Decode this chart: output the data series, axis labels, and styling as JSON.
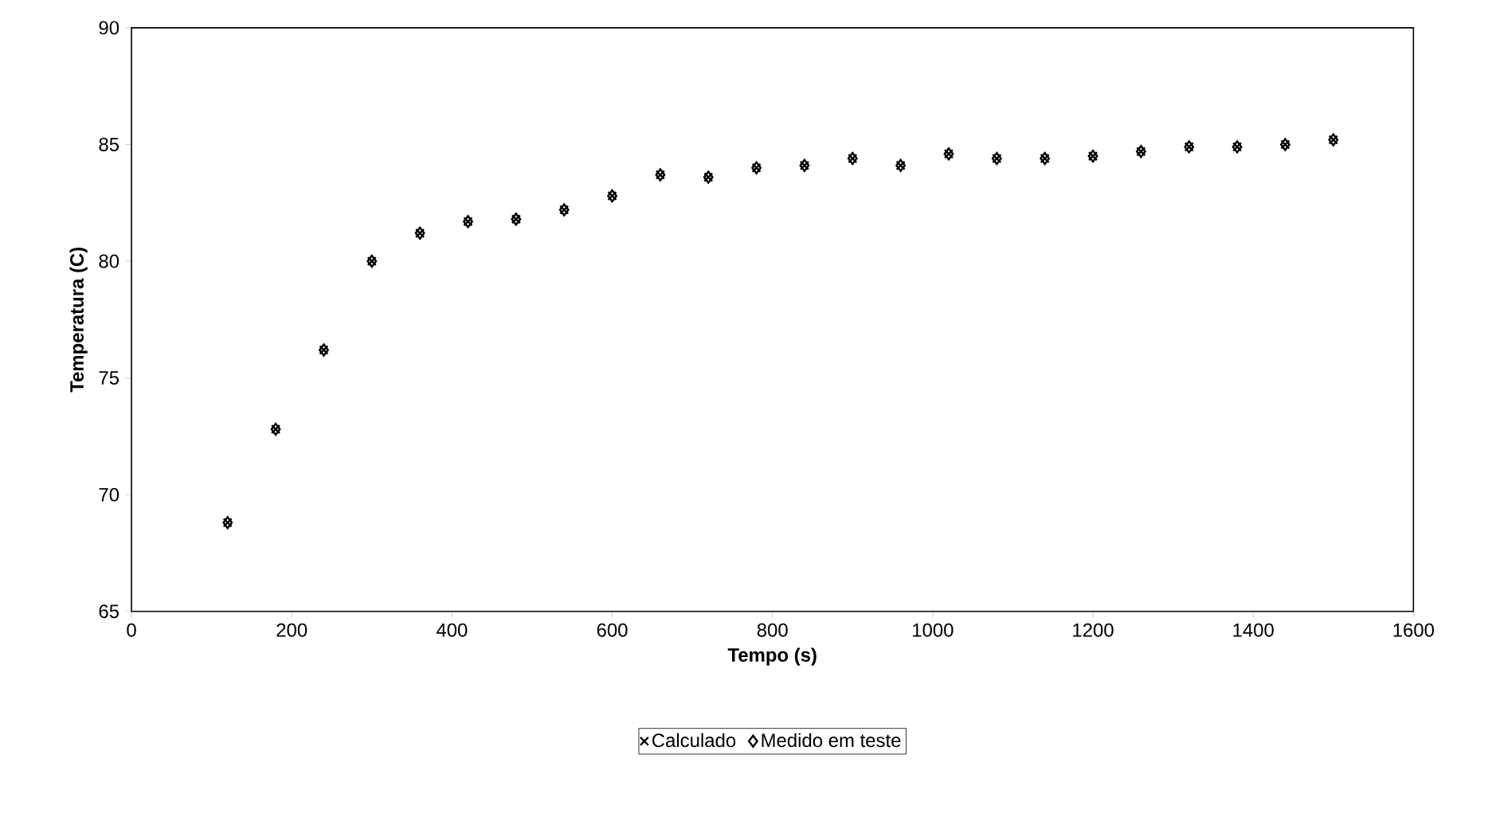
{
  "chart_data": {
    "type": "scatter",
    "xlabel": "Tempo (s)",
    "ylabel": "Temperatura (C)",
    "x": [
      120,
      180,
      240,
      300,
      360,
      420,
      480,
      540,
      600,
      660,
      720,
      780,
      840,
      900,
      960,
      1020,
      1080,
      1140,
      1200,
      1260,
      1320,
      1380,
      1440,
      1500
    ],
    "series": [
      {
        "name": "Calculado",
        "color": "#000000",
        "marker": "cross",
        "values": [
          68.8,
          72.8,
          76.2,
          80.0,
          81.2,
          81.7,
          81.8,
          82.2,
          82.8,
          83.7,
          83.6,
          84.0,
          84.1,
          84.4,
          84.1,
          84.6,
          84.4,
          84.4,
          84.5,
          84.7,
          84.9,
          84.9,
          85.0,
          85.2
        ]
      },
      {
        "name": "Medido em teste",
        "color": "#000000",
        "marker": "diamond",
        "values": [
          68.8,
          72.8,
          76.2,
          80.0,
          81.2,
          81.7,
          81.8,
          82.2,
          82.8,
          83.7,
          83.6,
          84.0,
          84.1,
          84.4,
          84.1,
          84.6,
          84.4,
          84.4,
          84.5,
          84.7,
          84.9,
          84.9,
          85.0,
          85.2
        ]
      }
    ],
    "xlim": [
      0,
      1600
    ],
    "xticks": [
      0,
      200,
      400,
      600,
      800,
      1000,
      1200,
      1400,
      1600
    ],
    "ylim": [
      65,
      90
    ],
    "yticks": [
      65,
      70,
      75,
      80,
      85,
      90
    ],
    "grid": false,
    "legend": "bottom"
  }
}
